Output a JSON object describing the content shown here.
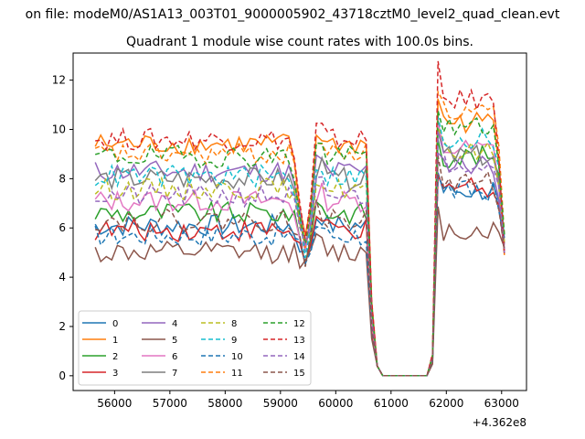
{
  "chart_data": {
    "type": "line",
    "suptitle": "on file: modeM0/AS1A13_003T01_9000005902_43718cztM0_level2_quad_clean.evt",
    "title": "Quadrant 1 module wise count rates with 100.0s bins.",
    "xlabel": "",
    "ylabel": "",
    "x_offset_label": "+4.362e8",
    "x_start": 55650,
    "x_step": 100,
    "n_points": 75,
    "xlim": [
      55250,
      63450
    ],
    "ylim": [
      -0.6,
      13.1
    ],
    "x_ticks": [
      56000,
      57000,
      58000,
      59000,
      60000,
      61000,
      62000,
      63000
    ],
    "x_tick_labels": [
      "56000",
      "57000",
      "58000",
      "59000",
      "60000",
      "61000",
      "62000",
      "63000"
    ],
    "y_ticks": [
      0,
      2,
      4,
      6,
      8,
      10,
      12
    ],
    "y_tick_labels": [
      "0",
      "2",
      "4",
      "6",
      "8",
      "10",
      "12"
    ],
    "grid": false,
    "legend_placement": "lower-left",
    "series": [
      {
        "name": "0",
        "color": "#1f77b4",
        "style": "solid",
        "base": 6.1,
        "after": 7.5
      },
      {
        "name": "1",
        "color": "#ff7f0e",
        "style": "solid",
        "base": 9.4,
        "after": 10.3
      },
      {
        "name": "2",
        "color": "#2ca02c",
        "style": "solid",
        "base": 6.6,
        "after": 8.9
      },
      {
        "name": "3",
        "color": "#d62728",
        "style": "solid",
        "base": 5.9,
        "after": 7.7
      },
      {
        "name": "4",
        "color": "#9467bd",
        "style": "solid",
        "base": 8.3,
        "after": 8.6
      },
      {
        "name": "5",
        "color": "#8c564b",
        "style": "solid",
        "base": 5.0,
        "after": 5.9
      },
      {
        "name": "6",
        "color": "#e377c2",
        "style": "solid",
        "base": 7.1,
        "after": 9.2
      },
      {
        "name": "7",
        "color": "#7f7f7f",
        "style": "solid",
        "base": 8.0,
        "after": 8.9
      },
      {
        "name": "8",
        "color": "#bcbd22",
        "style": "dashed",
        "base": 7.6,
        "after": 9.1
      },
      {
        "name": "9",
        "color": "#17becf",
        "style": "dashed",
        "base": 8.1,
        "after": 9.6
      },
      {
        "name": "10",
        "color": "#1f77b4",
        "style": "dashed",
        "base": 5.7,
        "after": 7.5
      },
      {
        "name": "11",
        "color": "#ff7f0e",
        "style": "dashed",
        "base": 9.0,
        "after": 10.7
      },
      {
        "name": "12",
        "color": "#2ca02c",
        "style": "dashed",
        "base": 8.9,
        "after": 10.1
      },
      {
        "name": "13",
        "color": "#d62728",
        "style": "dashed",
        "base": 9.6,
        "after": 11.2
      },
      {
        "name": "14",
        "color": "#9467bd",
        "style": "dashed",
        "base": 7.3,
        "after": 8.7
      },
      {
        "name": "15",
        "color": "#8c564b",
        "style": "dashed",
        "base": 6.3,
        "after": 7.9
      }
    ]
  }
}
